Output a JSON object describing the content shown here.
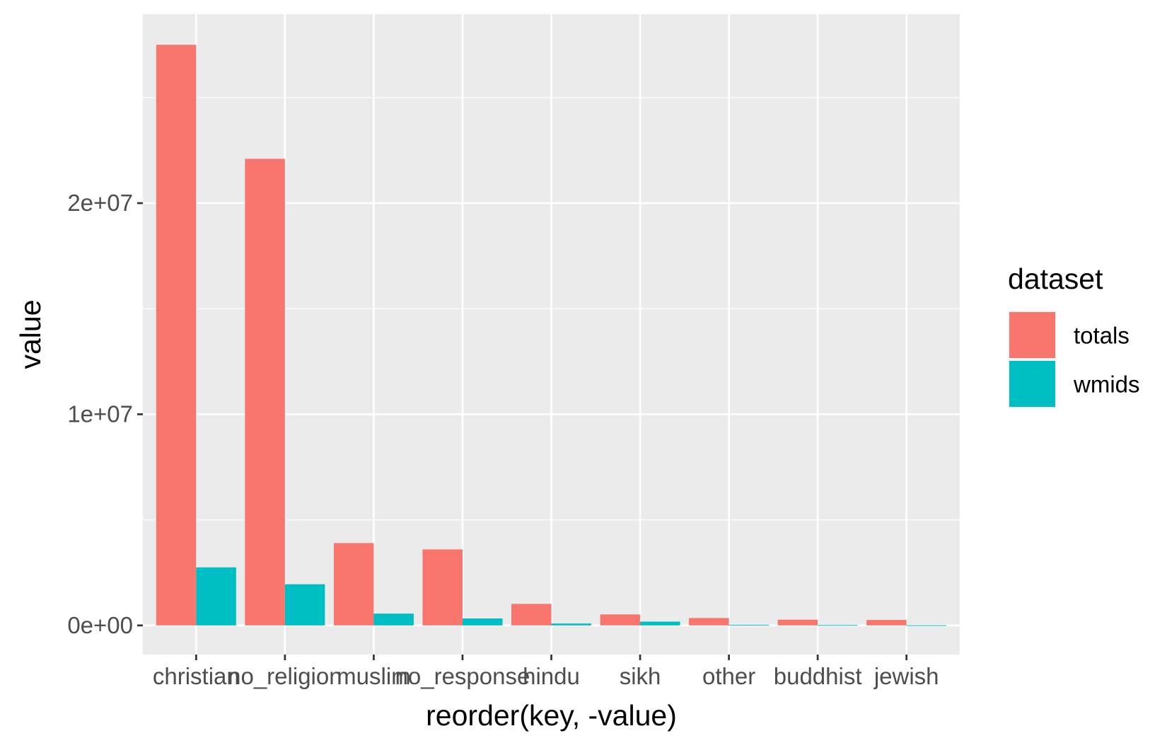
{
  "chart_data": {
    "type": "bar",
    "xlabel": "reorder(key, -value)",
    "ylabel": "value",
    "categories": [
      "christian",
      "no_religion",
      "muslim",
      "no_response",
      "hindu",
      "sikh",
      "other",
      "buddhist",
      "jewish"
    ],
    "series": [
      {
        "name": "totals",
        "color": "#F8766D",
        "values": [
          27500000,
          22100000,
          3900000,
          3600000,
          1020000,
          520000,
          350000,
          270000,
          260000
        ]
      },
      {
        "name": "wmids",
        "color": "#00BFC4",
        "values": [
          2750000,
          1950000,
          560000,
          330000,
          90000,
          180000,
          30000,
          20000,
          10000
        ]
      }
    ],
    "ylim": [
      -1380000,
      28950000
    ],
    "yticks": [
      {
        "value": 0,
        "label": "0e+00"
      },
      {
        "value": 10000000,
        "label": "1e+07"
      },
      {
        "value": 20000000,
        "label": "2e+07"
      }
    ],
    "yminor": [
      5000000,
      15000000,
      25000000
    ],
    "grid": true,
    "legend": {
      "title": "dataset",
      "position": "right"
    },
    "panel_color": "#EBEBEB",
    "grid_color": "#FFFFFF"
  }
}
